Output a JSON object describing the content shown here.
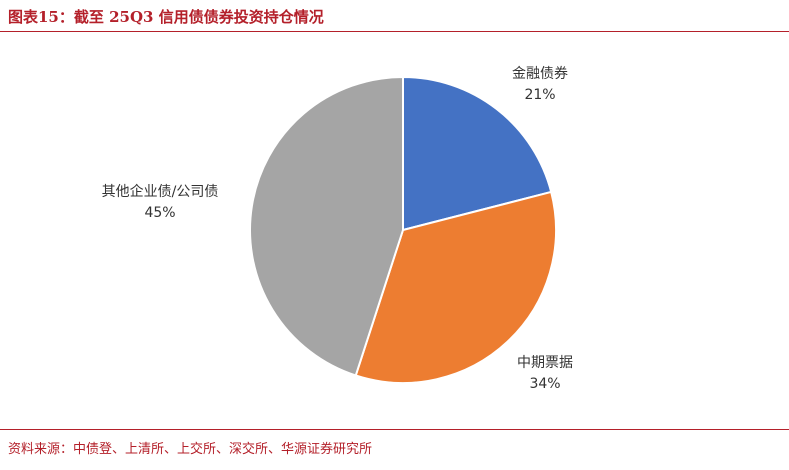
{
  "figure": {
    "title": "图表15：截至 25Q3 信用债债券投资持仓情况",
    "source": "资料来源：中债登、上清所、上交所、深交所、华源证券研究所"
  },
  "chart_data": {
    "type": "pie",
    "title": "",
    "start_angle_deg": 0,
    "direction": "clockwise",
    "legend": "none",
    "slices": [
      {
        "name": "金融债券",
        "value": 21,
        "label": "21%",
        "color": "#4472c4"
      },
      {
        "name": "中期票据",
        "value": 34,
        "label": "34%",
        "color": "#ed7d31"
      },
      {
        "name": "其他企业债/公司债",
        "value": 45,
        "label": "45%",
        "color": "#a5a5a5"
      }
    ]
  }
}
